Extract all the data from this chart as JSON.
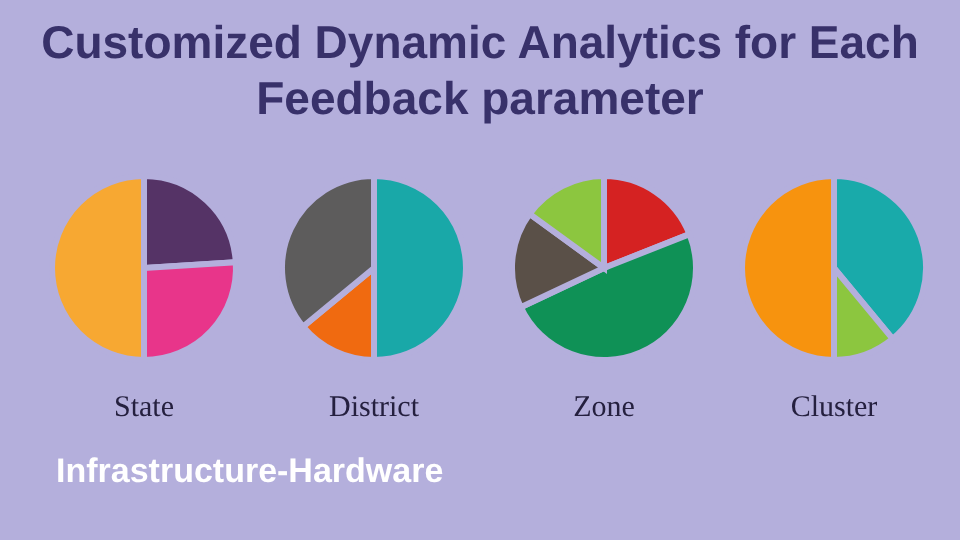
{
  "chart_data": [
    {
      "type": "other",
      "title": "Customized Dynamic Analytics for Each Feedback parameter",
      "annotations": [
        "Infrastructure-Hardware"
      ]
    },
    {
      "type": "pie",
      "title": "State",
      "categories": [
        null,
        null,
        null
      ],
      "values": [
        24,
        26,
        50
      ],
      "colors": [
        "#553366",
        "#e8358a",
        "#f7a832"
      ]
    },
    {
      "type": "pie",
      "title": "District",
      "categories": [
        null,
        null,
        null
      ],
      "values": [
        50,
        14,
        36
      ],
      "colors": [
        "#19a8a8",
        "#f06a10",
        "#5d5c5c"
      ]
    },
    {
      "type": "pie",
      "title": "Zone",
      "categories": [
        null,
        null,
        null,
        null
      ],
      "values": [
        19,
        49,
        17,
        15
      ],
      "colors": [
        "#d52222",
        "#0f9156",
        "#5a5048",
        "#8cc63f"
      ]
    },
    {
      "type": "pie",
      "title": "Cluster",
      "categories": [
        null,
        null,
        null
      ],
      "values": [
        39,
        11,
        50
      ],
      "colors": [
        "#19aaaa",
        "#8cc63f",
        "#f7930e"
      ]
    }
  ]
}
